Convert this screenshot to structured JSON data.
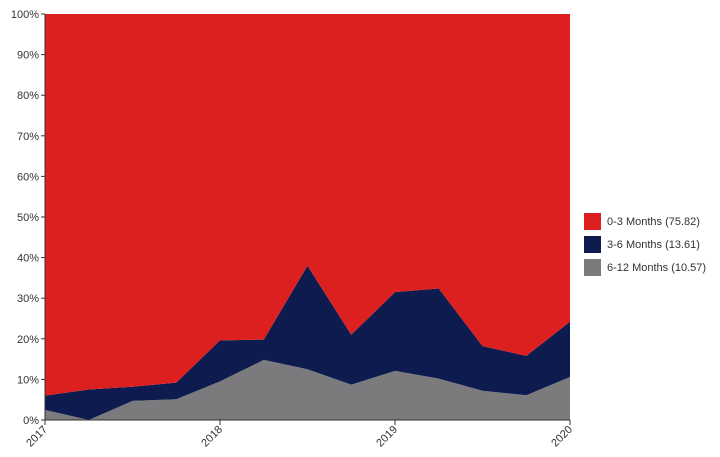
{
  "chart_data": {
    "type": "area",
    "stacked": true,
    "normalized_percent": true,
    "x": [
      2017.0,
      2017.25,
      2017.5,
      2017.75,
      2018.0,
      2018.25,
      2018.5,
      2018.75,
      2019.0,
      2019.25,
      2019.5,
      2019.75,
      2020.0
    ],
    "x_tick_labels": [
      "2017",
      "2018",
      "2019",
      "2020"
    ],
    "x_tick_values": [
      2017,
      2018,
      2019,
      2020
    ],
    "y_tick_labels": [
      "0%",
      "10%",
      "20%",
      "30%",
      "40%",
      "50%",
      "60%",
      "70%",
      "80%",
      "90%",
      "100%"
    ],
    "ylim": [
      0,
      100
    ],
    "grid": false,
    "legend_position": "right",
    "series": [
      {
        "name": "6-12 Months (10.57)",
        "color": "#7b7b7e",
        "values": [
          2.5,
          0,
          4.7,
          5.1,
          9.5,
          14.8,
          12.5,
          8.7,
          12.1,
          10.2,
          7.2,
          6.1,
          10.6
        ]
      },
      {
        "name": "3-6 Months (13.61)",
        "color": "#0e1b4f",
        "values": [
          3.5,
          7.5,
          3.5,
          4.1,
          10.1,
          5.0,
          25.5,
          12.3,
          19.4,
          22.2,
          11.0,
          9.7,
          13.6
        ]
      },
      {
        "name": "0-3 Months (75.82)",
        "color": "#dc1f1f",
        "values": [
          94.0,
          92.5,
          91.8,
          90.8,
          80.4,
          80.2,
          62.0,
          79.0,
          68.5,
          67.6,
          81.8,
          84.2,
          75.8
        ]
      }
    ],
    "legend_order": [
      2,
      1,
      0
    ]
  }
}
